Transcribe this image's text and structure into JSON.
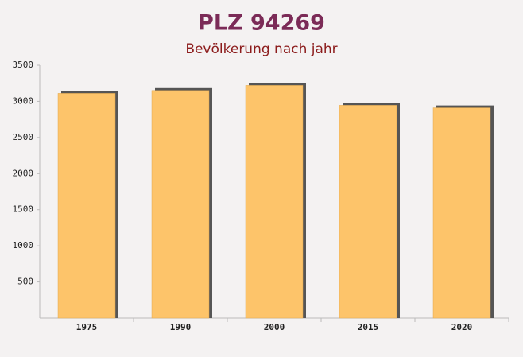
{
  "chart_data": {
    "type": "bar",
    "title": "PLZ 94269",
    "subtitle": "Bevölkerung nach jahr",
    "categories": [
      "1975",
      "1990",
      "2000",
      "2015",
      "2020"
    ],
    "values": [
      3110,
      3150,
      3220,
      2945,
      2910
    ],
    "color": "#fdc46a",
    "ylim": [
      0,
      3500
    ],
    "yticks": [
      500,
      1000,
      1500,
      2000,
      2500,
      3000,
      3500
    ],
    "grid": false
  }
}
